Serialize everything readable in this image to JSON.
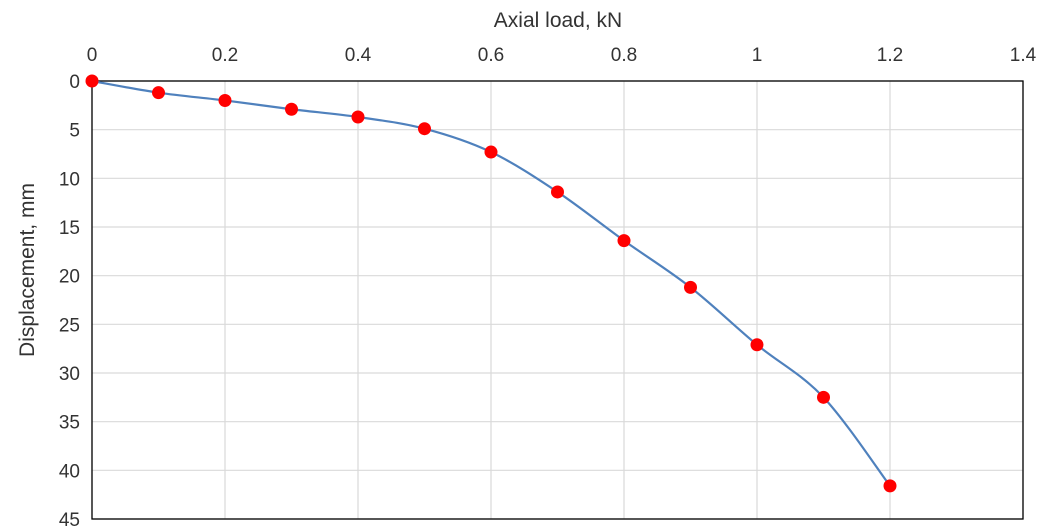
{
  "chart_data": {
    "type": "scatter",
    "title": "",
    "xlabel": "Axial load, kN",
    "ylabel": "Displacement, mm",
    "xlim": [
      0,
      1.4
    ],
    "ylim": [
      0,
      45
    ],
    "x_axis_position": "top",
    "y_axis_inverted": true,
    "x_ticks": [
      "0",
      "0.2",
      "0.4",
      "0.6",
      "0.8",
      "1",
      "1.2",
      "1.4"
    ],
    "y_ticks": [
      "0",
      "5",
      "10",
      "15",
      "20",
      "25",
      "30",
      "35",
      "40",
      "45"
    ],
    "grid": true,
    "legend": "none",
    "series": [
      {
        "x": [
          0,
          0.1,
          0.2,
          0.3,
          0.4,
          0.5,
          0.6,
          0.7,
          0.8,
          0.9,
          1.0,
          1.1,
          1.2
        ],
        "y": [
          0,
          1.2,
          2.0,
          2.9,
          3.7,
          4.9,
          7.3,
          11.4,
          16.4,
          21.2,
          27.1,
          32.5,
          41.6
        ],
        "line_color": "#4f81bd",
        "marker_color": "#ff0000",
        "smooth": true
      }
    ]
  }
}
